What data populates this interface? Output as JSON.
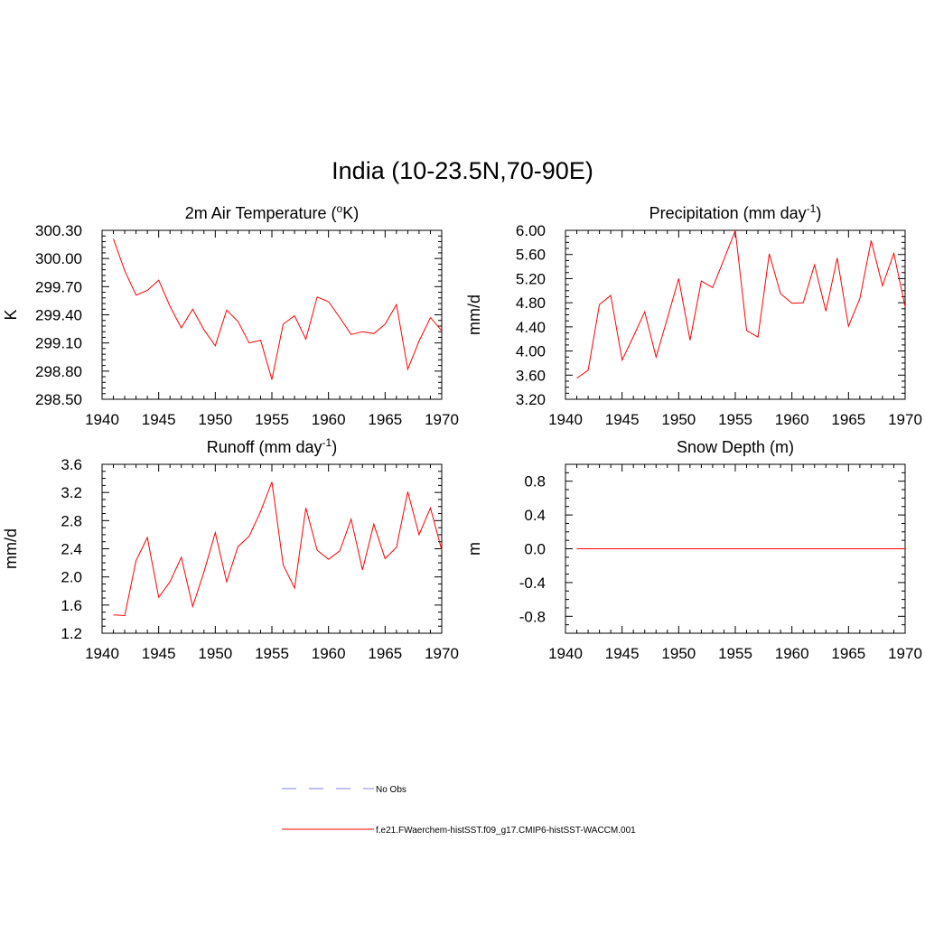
{
  "title": "India (10-23.5N,70-90E)",
  "legend": [
    {
      "label": "No Obs",
      "color": "#9a9aee",
      "style": "dashed"
    },
    {
      "label": "f.e21.FWaerchem-histSST.f09_g17.CMIP6-histSST-WACCM.001",
      "color": "#ff0000",
      "style": "solid"
    }
  ],
  "chart_data": [
    {
      "type": "line",
      "title": "2m Air Temperature (oK)",
      "title_parts": {
        "main": "2m Air Temperature (",
        "sup": "o",
        "tail": "K)"
      },
      "ylabel": "K",
      "xlabel": "",
      "xlim": [
        1940,
        1970
      ],
      "ylim": [
        298.5,
        300.3
      ],
      "xticks": [
        1940,
        1945,
        1950,
        1955,
        1960,
        1965,
        1970
      ],
      "yticks": [
        "298.50",
        "298.80",
        "299.10",
        "299.40",
        "299.70",
        "300.00",
        "300.30"
      ],
      "series": [
        {
          "color": "#ff0000",
          "x": [
            1941,
            1942,
            1943,
            1944,
            1945,
            1946,
            1947,
            1948,
            1949,
            1950,
            1951,
            1952,
            1953,
            1954,
            1955,
            1956,
            1957,
            1958,
            1959,
            1960,
            1961,
            1962,
            1963,
            1964,
            1965,
            1966,
            1967,
            1968,
            1969,
            1970
          ],
          "values": [
            300.21,
            299.87,
            299.61,
            299.66,
            299.77,
            299.49,
            299.26,
            299.46,
            299.24,
            299.07,
            299.45,
            299.33,
            299.1,
            299.13,
            298.71,
            299.3,
            299.39,
            299.14,
            299.59,
            299.54,
            299.37,
            299.19,
            299.22,
            299.2,
            299.3,
            299.51,
            298.82,
            299.12,
            299.37,
            299.23
          ]
        }
      ]
    },
    {
      "type": "line",
      "title": "Precipitation (mm day-1)",
      "title_parts": {
        "main": "Precipitation (mm day",
        "sup": "-1",
        "tail": ")"
      },
      "ylabel": "mm/d",
      "xlabel": "",
      "xlim": [
        1940,
        1970
      ],
      "ylim": [
        3.2,
        6.0
      ],
      "xticks": [
        1940,
        1945,
        1950,
        1955,
        1960,
        1965,
        1970
      ],
      "yticks": [
        "3.20",
        "3.60",
        "4.00",
        "4.40",
        "4.80",
        "5.20",
        "5.60",
        "6.00"
      ],
      "series": [
        {
          "color": "#ff0000",
          "x": [
            1941,
            1942,
            1943,
            1944,
            1945,
            1946,
            1947,
            1948,
            1949,
            1950,
            1951,
            1952,
            1953,
            1954,
            1955,
            1956,
            1957,
            1958,
            1959,
            1960,
            1961,
            1962,
            1963,
            1964,
            1965,
            1966,
            1967,
            1968,
            1969,
            1970
          ],
          "values": [
            3.55,
            3.68,
            4.77,
            4.92,
            3.85,
            4.24,
            4.65,
            3.9,
            4.54,
            5.2,
            4.18,
            5.16,
            5.05,
            5.52,
            6.0,
            4.34,
            4.23,
            5.61,
            4.95,
            4.79,
            4.8,
            5.43,
            4.66,
            5.54,
            4.41,
            4.87,
            5.83,
            5.08,
            5.62,
            4.73
          ]
        }
      ]
    },
    {
      "type": "line",
      "title": "Runoff (mm day-1)",
      "title_parts": {
        "main": "Runoff (mm day",
        "sup": "-1",
        "tail": ")"
      },
      "ylabel": "mm/d",
      "xlabel": "",
      "xlim": [
        1940,
        1970
      ],
      "ylim": [
        1.2,
        3.6
      ],
      "xticks": [
        1940,
        1945,
        1950,
        1955,
        1960,
        1965,
        1970
      ],
      "yticks": [
        "1.2",
        "1.6",
        "2.0",
        "2.4",
        "2.8",
        "3.2",
        "3.6"
      ],
      "series": [
        {
          "color": "#ff0000",
          "x": [
            1941,
            1942,
            1943,
            1944,
            1945,
            1946,
            1947,
            1948,
            1949,
            1950,
            1951,
            1952,
            1953,
            1954,
            1955,
            1956,
            1957,
            1958,
            1959,
            1960,
            1961,
            1962,
            1963,
            1964,
            1965,
            1966,
            1967,
            1968,
            1969,
            1970
          ],
          "values": [
            1.46,
            1.45,
            2.23,
            2.56,
            1.71,
            1.93,
            2.28,
            1.58,
            2.07,
            2.63,
            1.93,
            2.43,
            2.58,
            2.93,
            3.35,
            2.17,
            1.84,
            2.98,
            2.38,
            2.25,
            2.37,
            2.82,
            2.1,
            2.75,
            2.26,
            2.42,
            3.21,
            2.6,
            2.98,
            2.38
          ]
        }
      ]
    },
    {
      "type": "line",
      "title": "Snow Depth (m)",
      "title_parts": {
        "main": "Snow Depth (m)",
        "sup": "",
        "tail": ""
      },
      "ylabel": "m",
      "xlabel": "",
      "xlim": [
        1940,
        1970
      ],
      "ylim": [
        -1.0,
        1.0
      ],
      "xticks": [
        1940,
        1945,
        1950,
        1955,
        1960,
        1965,
        1970
      ],
      "yticks": [
        "-0.8",
        "-0.4",
        "0.0",
        "0.4",
        "0.8"
      ],
      "series": [
        {
          "color": "#ff0000",
          "x": [
            1941,
            1942,
            1943,
            1944,
            1945,
            1946,
            1947,
            1948,
            1949,
            1950,
            1951,
            1952,
            1953,
            1954,
            1955,
            1956,
            1957,
            1958,
            1959,
            1960,
            1961,
            1962,
            1963,
            1964,
            1965,
            1966,
            1967,
            1968,
            1969,
            1970
          ],
          "values": [
            0,
            0,
            0,
            0,
            0,
            0,
            0,
            0,
            0,
            0,
            0,
            0,
            0,
            0,
            0,
            0,
            0,
            0,
            0,
            0,
            0,
            0,
            0,
            0,
            0,
            0,
            0,
            0,
            0,
            0
          ]
        }
      ]
    }
  ]
}
